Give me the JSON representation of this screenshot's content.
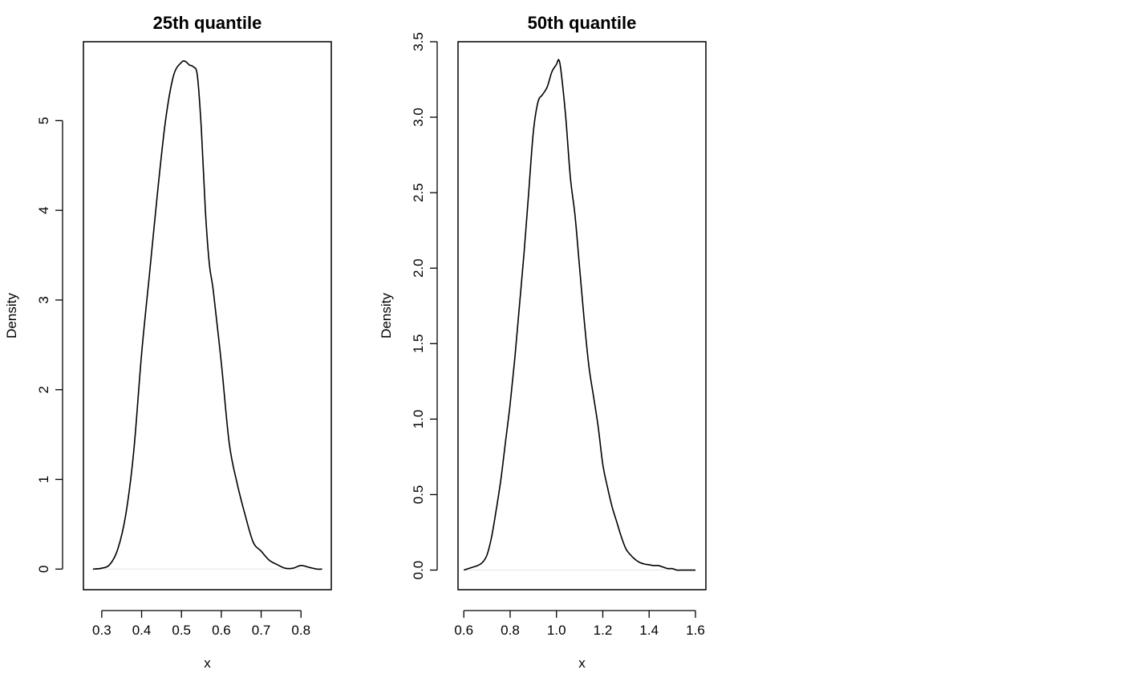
{
  "chart_data": [
    {
      "type": "line",
      "title": "25th quantile",
      "xlabel": "x",
      "ylabel": "Density",
      "xlim": [
        0.254,
        0.876
      ],
      "ylim": [
        -0.23,
        5.88
      ],
      "xticks": [
        "0.3",
        "0.4",
        "0.5",
        "0.6",
        "0.7",
        "0.8"
      ],
      "yticks": [
        "0",
        "1",
        "2",
        "3",
        "4",
        "5"
      ],
      "grid": false,
      "series": [
        {
          "x": [
            0.278,
            0.3,
            0.32,
            0.34,
            0.36,
            0.38,
            0.4,
            0.42,
            0.44,
            0.46,
            0.48,
            0.5,
            0.51,
            0.52,
            0.53,
            0.54,
            0.55,
            0.56,
            0.57,
            0.58,
            0.6,
            0.62,
            0.64,
            0.66,
            0.68,
            0.7,
            0.72,
            0.74,
            0.76,
            0.78,
            0.8,
            0.82,
            0.84,
            0.853
          ],
          "y": [
            0.0,
            0.01,
            0.05,
            0.22,
            0.6,
            1.3,
            2.4,
            3.3,
            4.2,
            5.0,
            5.5,
            5.65,
            5.66,
            5.62,
            5.6,
            5.5,
            4.9,
            4.0,
            3.4,
            3.1,
            2.3,
            1.4,
            0.95,
            0.6,
            0.3,
            0.2,
            0.1,
            0.05,
            0.01,
            0.01,
            0.04,
            0.02,
            0.0,
            0.0
          ]
        }
      ]
    },
    {
      "type": "line",
      "title": "50th quantile",
      "xlabel": "x",
      "ylabel": "Density",
      "xlim": [
        0.575,
        1.645
      ],
      "ylim": [
        -0.13,
        3.5
      ],
      "xticks": [
        "0.6",
        "0.8",
        "1.0",
        "1.2",
        "1.4",
        "1.6"
      ],
      "yticks": [
        "0.0",
        "0.5",
        "1.0",
        "1.5",
        "2.0",
        "2.5",
        "3.0",
        "3.5"
      ],
      "grid": false,
      "series": [
        {
          "x": [
            0.6,
            0.62,
            0.64,
            0.66,
            0.68,
            0.7,
            0.72,
            0.74,
            0.76,
            0.78,
            0.8,
            0.82,
            0.84,
            0.86,
            0.88,
            0.9,
            0.92,
            0.94,
            0.96,
            0.98,
            1.0,
            1.01,
            1.02,
            1.04,
            1.06,
            1.08,
            1.1,
            1.12,
            1.14,
            1.16,
            1.18,
            1.2,
            1.22,
            1.24,
            1.26,
            1.28,
            1.3,
            1.32,
            1.34,
            1.36,
            1.38,
            1.4,
            1.42,
            1.44,
            1.46,
            1.48,
            1.5,
            1.52,
            1.54,
            1.56,
            1.58,
            1.6
          ],
          "y": [
            0.0,
            0.01,
            0.02,
            0.03,
            0.05,
            0.1,
            0.22,
            0.4,
            0.6,
            0.85,
            1.1,
            1.4,
            1.75,
            2.1,
            2.5,
            2.9,
            3.1,
            3.15,
            3.2,
            3.3,
            3.35,
            3.38,
            3.3,
            3.0,
            2.6,
            2.35,
            2.0,
            1.65,
            1.35,
            1.15,
            0.95,
            0.7,
            0.55,
            0.42,
            0.32,
            0.22,
            0.14,
            0.1,
            0.07,
            0.05,
            0.04,
            0.035,
            0.03,
            0.03,
            0.02,
            0.01,
            0.01,
            0.0,
            0.0,
            0.0,
            0.0,
            0.0
          ]
        }
      ]
    }
  ]
}
